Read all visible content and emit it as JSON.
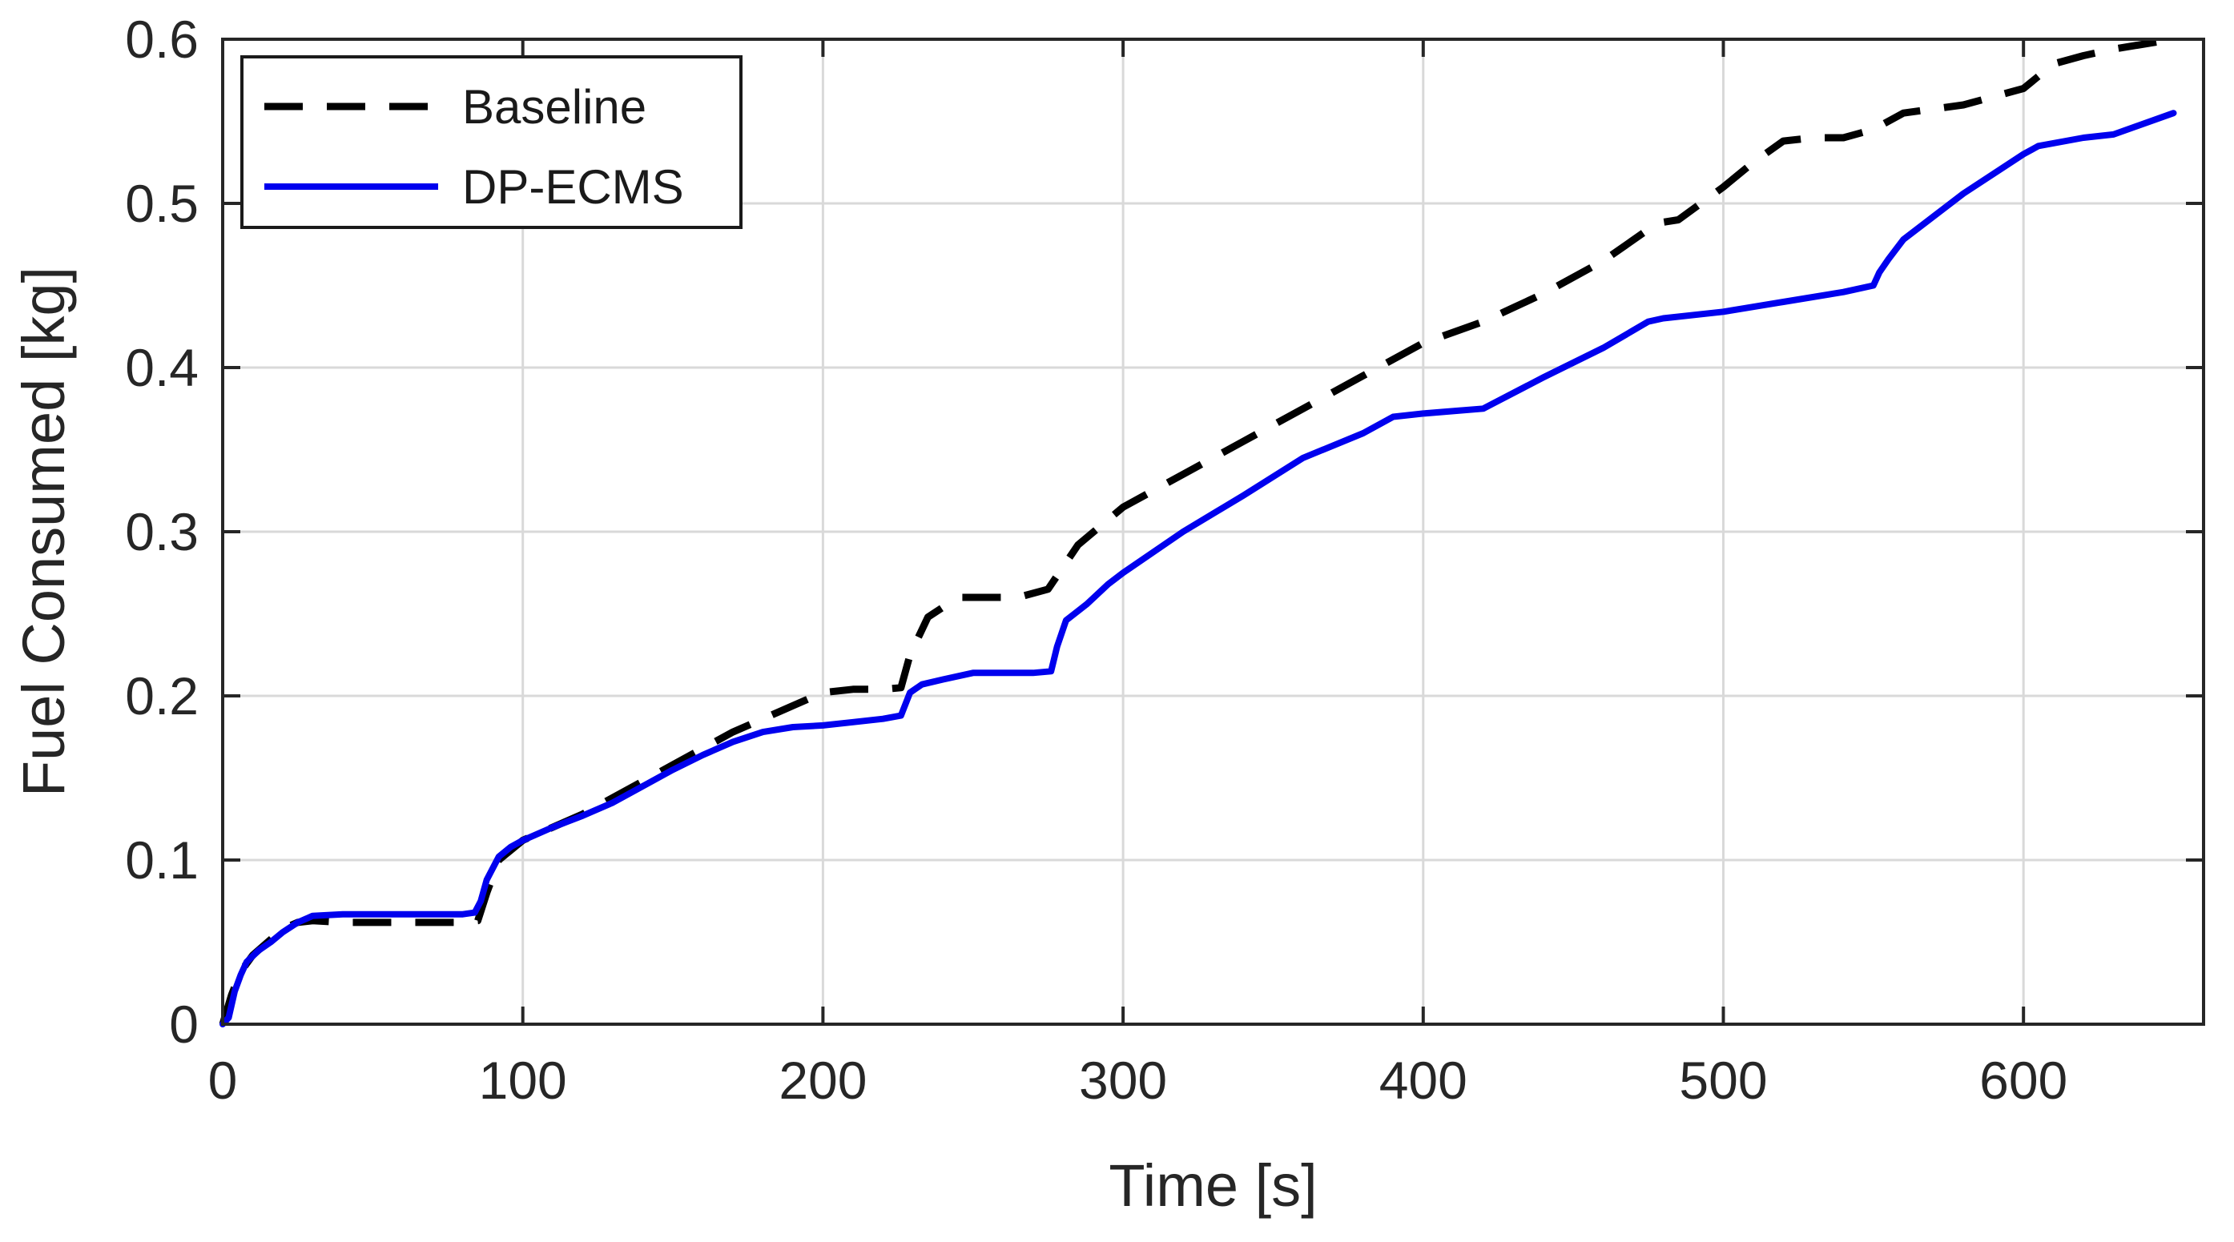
{
  "chart_data": {
    "type": "line",
    "title": "",
    "xlabel": "Time [s]",
    "ylabel": "Fuel Consumed [kg]",
    "xlim": [
      0,
      660
    ],
    "ylim": [
      0,
      0.6
    ],
    "xticks": [
      0,
      100,
      200,
      300,
      400,
      500,
      600
    ],
    "yticks": [
      0,
      0.1,
      0.2,
      0.3,
      0.4,
      0.5,
      0.6
    ],
    "xtick_labels": [
      "0",
      "100",
      "200",
      "300",
      "400",
      "500",
      "600"
    ],
    "ytick_labels": [
      "0",
      "0.1",
      "0.2",
      "0.3",
      "0.4",
      "0.5",
      "0.6"
    ],
    "grid": true,
    "legend_position": "top-left",
    "series": [
      {
        "name": "Baseline",
        "color": "#000000",
        "style": "dashed",
        "x": [
          0,
          3,
          6,
          10,
          15,
          20,
          25,
          30,
          40,
          50,
          60,
          70,
          80,
          85,
          88,
          92,
          100,
          110,
          120,
          130,
          140,
          150,
          160,
          170,
          180,
          190,
          200,
          210,
          220,
          226,
          229,
          235,
          245,
          255,
          265,
          275,
          285,
          300,
          320,
          340,
          360,
          380,
          400,
          420,
          440,
          460,
          478,
          485,
          500,
          510,
          520,
          530,
          540,
          550,
          560,
          580,
          600,
          610,
          620,
          630,
          650
        ],
        "values": [
          0.0,
          0.018,
          0.032,
          0.042,
          0.05,
          0.058,
          0.062,
          0.063,
          0.062,
          0.062,
          0.062,
          0.062,
          0.062,
          0.063,
          0.08,
          0.1,
          0.112,
          0.12,
          0.128,
          0.138,
          0.148,
          0.158,
          0.168,
          0.178,
          0.186,
          0.194,
          0.202,
          0.204,
          0.204,
          0.205,
          0.225,
          0.248,
          0.26,
          0.26,
          0.26,
          0.265,
          0.292,
          0.315,
          0.335,
          0.355,
          0.375,
          0.395,
          0.415,
          0.428,
          0.445,
          0.465,
          0.488,
          0.49,
          0.51,
          0.525,
          0.538,
          0.54,
          0.54,
          0.545,
          0.555,
          0.56,
          0.57,
          0.585,
          0.59,
          0.594,
          0.6
        ]
      },
      {
        "name": "DP-ECMS",
        "color": "#0000ee",
        "style": "solid",
        "x": [
          0,
          2,
          4,
          6,
          8,
          12,
          16,
          20,
          25,
          30,
          40,
          50,
          60,
          70,
          80,
          84,
          86,
          88,
          92,
          96,
          100,
          110,
          120,
          130,
          140,
          150,
          160,
          170,
          180,
          190,
          200,
          210,
          220,
          226,
          229,
          233,
          240,
          250,
          260,
          270,
          276,
          278,
          281,
          288,
          295,
          300,
          320,
          340,
          360,
          380,
          390,
          400,
          420,
          440,
          460,
          475,
          480,
          500,
          520,
          540,
          550,
          552,
          555,
          560,
          580,
          600,
          605,
          620,
          630,
          650
        ],
        "values": [
          0.0,
          0.004,
          0.02,
          0.03,
          0.038,
          0.045,
          0.05,
          0.056,
          0.062,
          0.066,
          0.067,
          0.067,
          0.067,
          0.067,
          0.067,
          0.068,
          0.075,
          0.088,
          0.102,
          0.108,
          0.112,
          0.12,
          0.127,
          0.135,
          0.145,
          0.155,
          0.164,
          0.172,
          0.178,
          0.181,
          0.182,
          0.184,
          0.186,
          0.188,
          0.202,
          0.207,
          0.21,
          0.214,
          0.214,
          0.214,
          0.215,
          0.23,
          0.246,
          0.256,
          0.268,
          0.275,
          0.3,
          0.322,
          0.345,
          0.36,
          0.37,
          0.372,
          0.375,
          0.394,
          0.412,
          0.428,
          0.43,
          0.434,
          0.44,
          0.446,
          0.45,
          0.458,
          0.466,
          0.478,
          0.506,
          0.53,
          0.535,
          0.54,
          0.542,
          0.555
        ]
      }
    ]
  }
}
